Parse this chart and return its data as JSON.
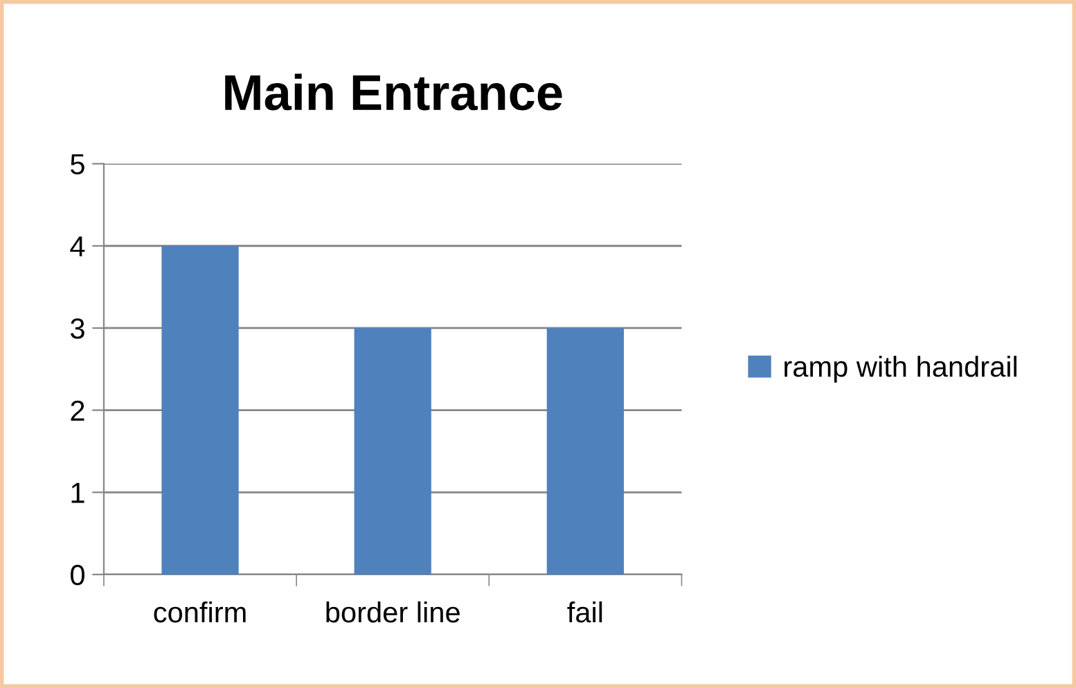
{
  "chart_data": {
    "type": "bar",
    "title": "Main Entrance",
    "categories": [
      "confirm",
      "border line",
      "fail"
    ],
    "series": [
      {
        "name": "ramp with handrail",
        "color": "#4f81bd",
        "values": [
          4,
          3,
          3
        ]
      }
    ],
    "ylim": [
      0,
      5
    ],
    "yticks": [
      0,
      1,
      2,
      3,
      4,
      5
    ],
    "grid": "y",
    "legend": "right"
  }
}
